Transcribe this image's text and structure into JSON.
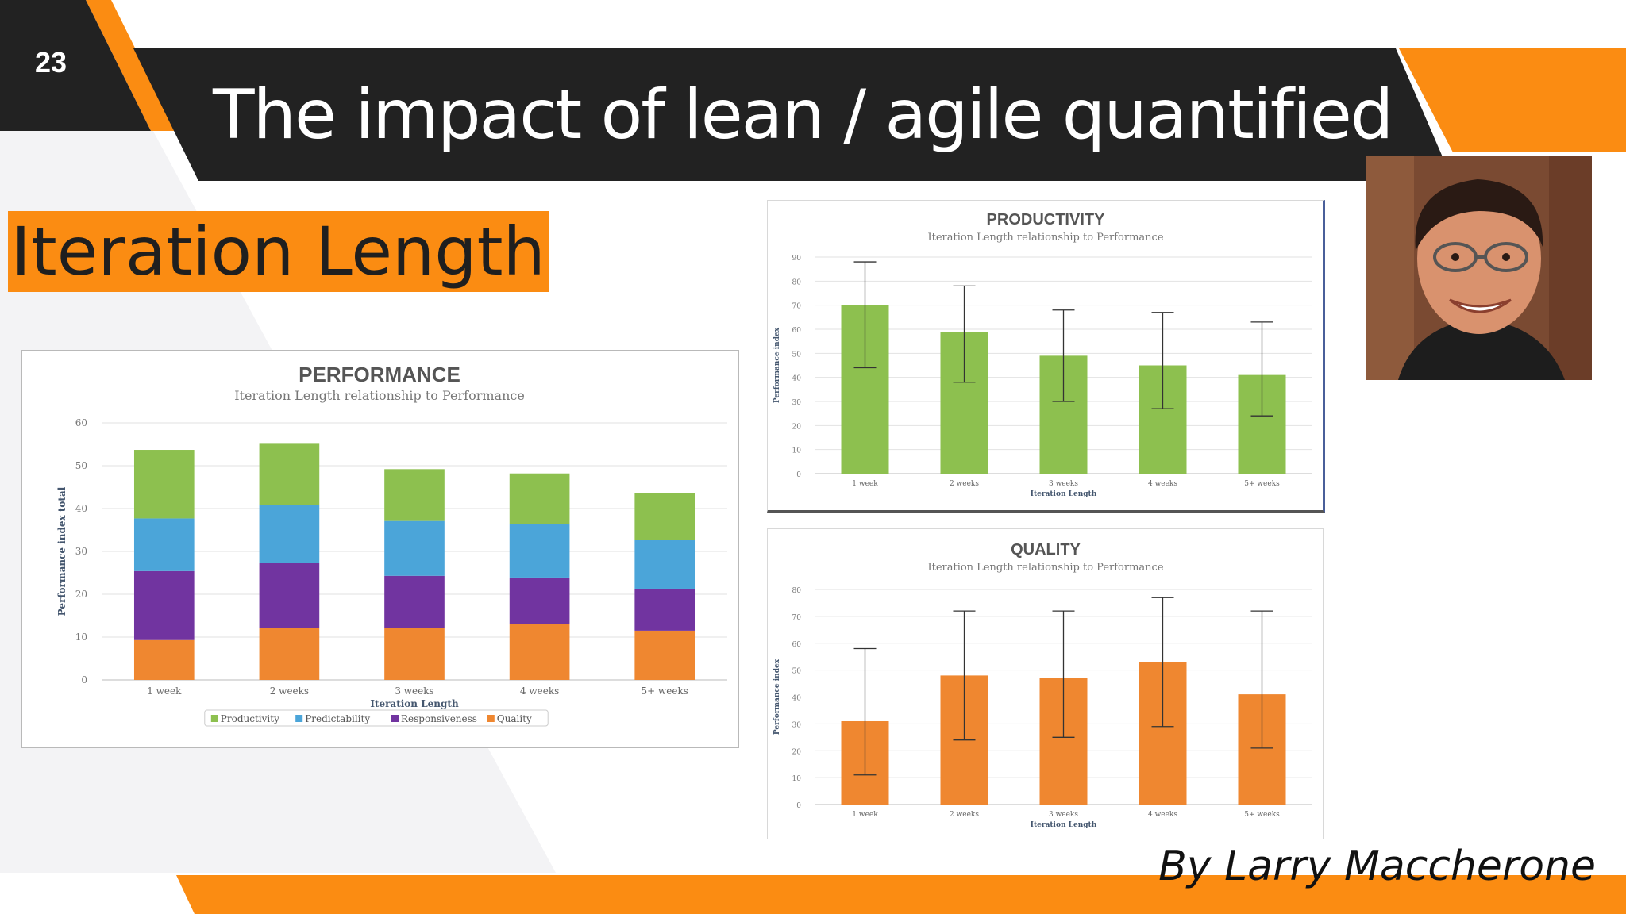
{
  "slide": {
    "number": "23",
    "title": "The impact of lean / agile quantified",
    "section_label": "Iteration Length",
    "byline": "By Larry Maccherone"
  },
  "colors": {
    "accent_orange": "#fb8c12",
    "dark_band": "#222222",
    "productivity": "#8dc04f",
    "predictability": "#4ba5d9",
    "responsiveness": "#7134a0",
    "quality": "#ef8730"
  },
  "chart_data": [
    {
      "id": "performance",
      "type": "bar",
      "stacked": true,
      "title": "PERFORMANCE",
      "subtitle": "Iteration Length relationship to Performance",
      "xlabel": "Iteration Length",
      "ylabel": "Performance index total",
      "categories": [
        "1 week",
        "2 weeks",
        "3 weeks",
        "4 weeks",
        "5+ weeks"
      ],
      "ylim": [
        0,
        60
      ],
      "yticks": [
        0,
        10,
        20,
        30,
        40,
        50,
        60
      ],
      "grid": true,
      "legend": "bottom",
      "series": [
        {
          "name": "Quality",
          "values": [
            9.3,
            12.2,
            12.2,
            13.1,
            11.5
          ]
        },
        {
          "name": "Responsiveness",
          "values": [
            16.1,
            15.1,
            12.1,
            10.8,
            9.8
          ]
        },
        {
          "name": "Predictability",
          "values": [
            12.3,
            13.6,
            12.8,
            12.5,
            11.3
          ]
        },
        {
          "name": "Productivity",
          "values": [
            16.0,
            14.4,
            12.1,
            11.8,
            11.0
          ]
        }
      ]
    },
    {
      "id": "productivity",
      "type": "bar",
      "title": "PRODUCTIVITY",
      "subtitle": "Iteration Length relationship to Performance",
      "xlabel": "Iteration Length",
      "ylabel": "Performance index",
      "categories": [
        "1 week",
        "2 weeks",
        "3 weeks",
        "4 weeks",
        "5+ weeks"
      ],
      "ylim": [
        0,
        90
      ],
      "yticks": [
        0,
        10,
        20,
        30,
        40,
        50,
        60,
        70,
        80,
        90
      ],
      "grid": true,
      "values": [
        70,
        59,
        49,
        45,
        41
      ],
      "error_low": [
        44,
        38,
        30,
        27,
        24
      ],
      "error_high": [
        88,
        78,
        68,
        67,
        63
      ]
    },
    {
      "id": "quality",
      "type": "bar",
      "title": "QUALITY",
      "subtitle": "Iteration Length relationship to Performance",
      "xlabel": "Iteration Length",
      "ylabel": "Performance index",
      "categories": [
        "1 week",
        "2 weeks",
        "3 weeks",
        "4 weeks",
        "5+ weeks"
      ],
      "ylim": [
        0,
        80
      ],
      "yticks": [
        0,
        10,
        20,
        30,
        40,
        50,
        60,
        70,
        80
      ],
      "grid": true,
      "values": [
        31,
        48,
        47,
        53,
        41
      ],
      "error_low": [
        11,
        24,
        25,
        29,
        21
      ],
      "error_high": [
        58,
        72,
        72,
        77,
        72
      ]
    }
  ]
}
